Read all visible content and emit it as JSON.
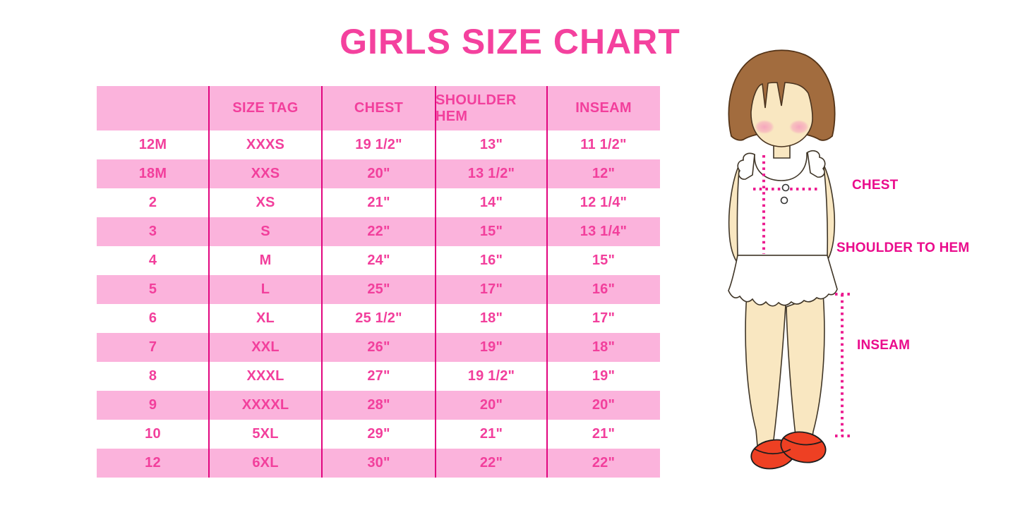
{
  "chart_data": {
    "type": "table",
    "title": "GIRLS SIZE CHART",
    "columns": [
      "",
      "SIZE TAG",
      "CHEST",
      "SHOULDER HEM",
      "INSEAM"
    ],
    "rows": [
      [
        "12M",
        "XXXS",
        "19 1/2\"",
        "13\"",
        "11 1/2\""
      ],
      [
        "18M",
        "XXS",
        "20\"",
        "13 1/2\"",
        "12\""
      ],
      [
        "2",
        "XS",
        "21\"",
        "14\"",
        "12 1/4\""
      ],
      [
        "3",
        "S",
        "22\"",
        "15\"",
        "13 1/4\""
      ],
      [
        "4",
        "M",
        "24\"",
        "16\"",
        "15\""
      ],
      [
        "5",
        "L",
        "25\"",
        "17\"",
        "16\""
      ],
      [
        "6",
        "XL",
        "25 1/2\"",
        "18\"",
        "17\""
      ],
      [
        "7",
        "XXL",
        "26\"",
        "19\"",
        "18\""
      ],
      [
        "8",
        "XXXL",
        "27\"",
        "19 1/2\"",
        "19\""
      ],
      [
        "9",
        "XXXXL",
        "28\"",
        "20\"",
        "20\""
      ],
      [
        "10",
        "5XL",
        "29\"",
        "21\"",
        "21\""
      ],
      [
        "12",
        "6XL",
        "30\"",
        "22\"",
        "22\""
      ]
    ],
    "layout": {
      "striped": true,
      "stripe_pattern": "header pink, then rows alternate white/pink"
    }
  },
  "diagram": {
    "labels": {
      "chest": "CHEST",
      "shoulder_to_hem": "SHOULDER TO HEM",
      "inseam": "INSEAM"
    }
  },
  "colors": {
    "title_pink": "#F4419E",
    "row_band_pink": "#FBB3DC",
    "table_text_pink": "#F23F9C",
    "divider_magenta": "#E1067F",
    "label_magenta": "#EA0B8C",
    "dotted_line_magenta": "#EC1C90",
    "hair_brown": "#A26C3E",
    "skin": "#F9E7C1",
    "shoe_red": "#EE4023"
  }
}
